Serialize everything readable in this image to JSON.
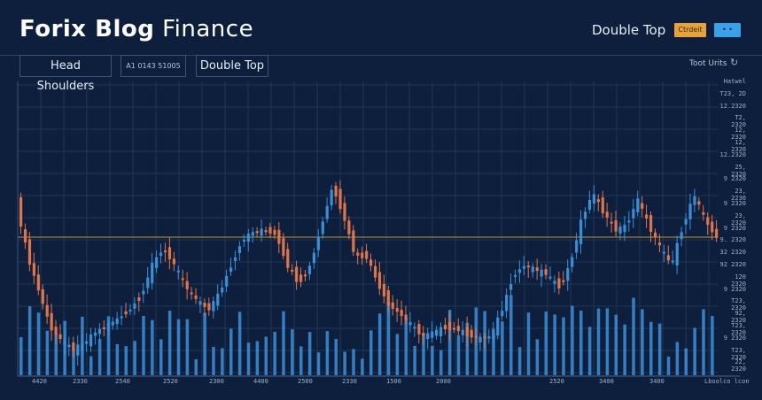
{
  "header": {
    "brand_bold": "Forix Blog",
    "brand_light": "Finance",
    "title": "Double Top",
    "orange_button": "Ctrdeit",
    "blue_button": "• •"
  },
  "tabs": [
    "Head Shoulders",
    "A1 0143 51005",
    "Double Top"
  ],
  "toolbar": {
    "tools_label": "Toot Urits",
    "refresh_icon": "refresh-icon"
  },
  "colors": {
    "background": "#0d1f3c",
    "up": "#3b8ed6",
    "down": "#e0744a",
    "volume": "#3f8fd8",
    "reference_line": "#c8973a",
    "orange_button": "#e6a23c",
    "blue_button": "#3aa0e8"
  },
  "chart_data": {
    "type": "candlestick",
    "y_tick_labels": [
      "Hatwel",
      "T23, 2D",
      "12.2320",
      "T2, 2320",
      "12, 2320",
      "12, 2320",
      "12.2320",
      "25, 2320",
      "9 2320",
      "23, 2230",
      "9 2320",
      "23, 2320",
      "9 2320",
      "9. 2320",
      "32 2320",
      "92 2320",
      "120 2320",
      "9 2320",
      "T23, 2320",
      "92, 2320",
      "T23, 2320",
      "9 2320",
      "T23, 2320",
      "22, 2320"
    ],
    "x_tick_labels": [
      "4420",
      "2330",
      "2540",
      "2520",
      "2300",
      "4400",
      "2500",
      "2330",
      "1500",
      "2000",
      "2520",
      "3400",
      "3400",
      "Lboolco lcon"
    ],
    "reference_line": true,
    "grid": true
  }
}
